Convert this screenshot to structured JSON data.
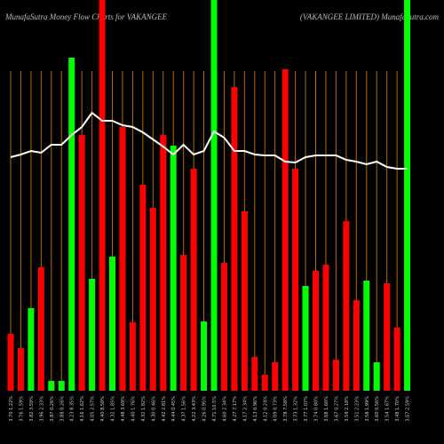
{
  "chart_data": {
    "type": "bar",
    "title": "MunafaSutra  Money Flow  Charts for VAKANGEE",
    "subtitle": "(VAKANGEE LIMITED) MunafaSutra.com",
    "categories": [
      "3.70 1.22%",
      "3.76 1.59%",
      "3.82 3.59%",
      "3.96 2.33%",
      "3.87 0.26%",
      "3.88 0.26%",
      "4.23 8.35%",
      "4.16 1.62%",
      "4.05 2.57%",
      "4.40 8.50%",
      "4.32 1.85%",
      "4.48 3.69%",
      "4.40 1.76%",
      "4.32 1.82%",
      "4.30 0.46%",
      "4.42 2.81%",
      "4.44 0.45%",
      "4.37 1.56%",
      "4.22 3.43%",
      "4.26 0.95%",
      "4.71 10.5%",
      "4.60 2.34%",
      "4.27 7.17%",
      "4.17 2.34%",
      "4.13 0.96%",
      "4.12 0.24%",
      "4.09 0.73%",
      "3.78 7.58%",
      "3.73 1.32%",
      "3.77 1.07%",
      "3.74 0.80%",
      "3.68 1.60%",
      "3.67 0.27%",
      "3.59 2.18%",
      "3.51 2.23%",
      "3.58 1.99%",
      "3.60 0.56%",
      "3.54 1.67%",
      "3.48 1.70%",
      "3.57 2.59%"
    ],
    "values": [
      64,
      48,
      93,
      139,
      11,
      11,
      375,
      288,
      126,
      440,
      151,
      297,
      77,
      232,
      206,
      288,
      276,
      153,
      250,
      78,
      440,
      144,
      342,
      202,
      38,
      18,
      32,
      362,
      250,
      118,
      135,
      142,
      35,
      191,
      102,
      124,
      32,
      121,
      71,
      440
    ],
    "bar_colors": [
      "red",
      "red",
      "lime",
      "red",
      "lime",
      "lime",
      "lime",
      "red",
      "lime",
      "red",
      "lime",
      "red",
      "red",
      "red",
      "red",
      "red",
      "lime",
      "red",
      "red",
      "lime",
      "lime",
      "red",
      "red",
      "red",
      "red",
      "red",
      "red",
      "red",
      "red",
      "lime",
      "red",
      "red",
      "red",
      "red",
      "red",
      "lime",
      "lime",
      "red",
      "red",
      "lime"
    ],
    "line": {
      "color": "#ffffff",
      "values": [
        263,
        266,
        270,
        268,
        277,
        277,
        288,
        297,
        313,
        304,
        304,
        299,
        297,
        291,
        283,
        275,
        266,
        277,
        266,
        270,
        292,
        285,
        270,
        270,
        266,
        265,
        265,
        258,
        257,
        263,
        265,
        265,
        265,
        260,
        258,
        255,
        258,
        252,
        250,
        250
      ]
    },
    "guide_color": "#b86a00",
    "ylim": [
      0,
      440
    ]
  }
}
